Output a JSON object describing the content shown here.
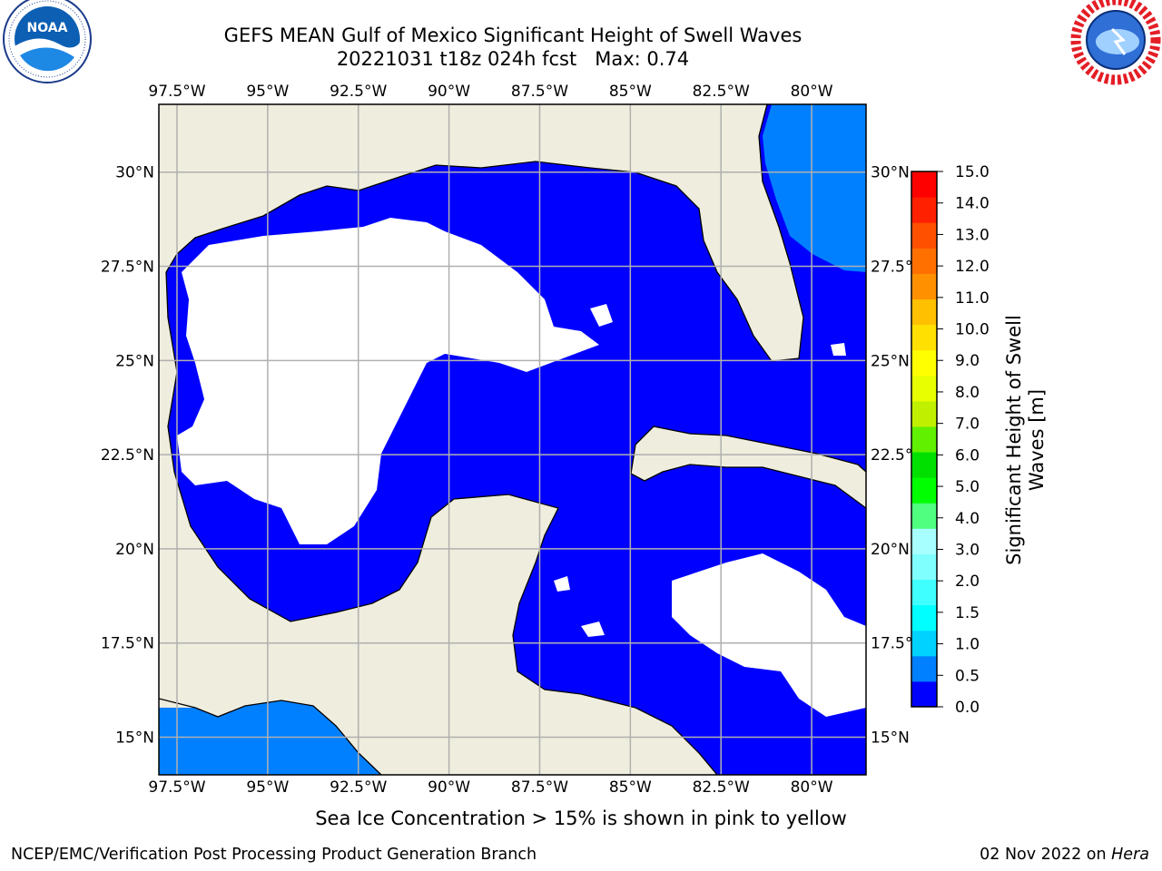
{
  "title": {
    "line1": "GEFS MEAN Gulf of Mexico Significant Height of Swell Waves",
    "line2": "20221031 t18z 024h fcst   Max: 0.74"
  },
  "logos": {
    "left": {
      "icon": "noaa-logo",
      "text": "NOAA",
      "ring_text": "NATIONAL OCEANIC AND ATMOSPHERIC ADMINISTRATION · U.S. DEPARTMENT OF COMMERCE"
    },
    "right": {
      "icon": "national-weather-service-logo",
      "ring_text": "NATIONAL WEATHER SERVICE"
    }
  },
  "map": {
    "lon_range": [
      -98.0,
      -78.5
    ],
    "lat_range": [
      14.0,
      31.8
    ],
    "x_ticks": [
      "97.5°W",
      "95°W",
      "92.5°W",
      "90°W",
      "87.5°W",
      "85°W",
      "82.5°W",
      "80°W"
    ],
    "y_ticks": [
      "30°N",
      "27.5°N",
      "25°N",
      "22.5°N",
      "20°N",
      "17.5°N",
      "15°N"
    ],
    "colors": {
      "land": "#efedde",
      "ocean_low": "#0000ff",
      "ocean_mid": "#0080ff",
      "masked": "#ffffff",
      "grid": "#b0b0b0",
      "coast": "#000000"
    }
  },
  "colorbar": {
    "label": "Significant Height of Swell Waves [m]",
    "ticks": [
      "0.0",
      "0.5",
      "1.0",
      "1.5",
      "2.0",
      "3.0",
      "4.0",
      "5.0",
      "6.0",
      "7.0",
      "8.0",
      "9.0",
      "10.0",
      "11.0",
      "12.0",
      "13.0",
      "14.0",
      "15.0"
    ],
    "colors": [
      "#0000ff",
      "#0080ff",
      "#00d2ff",
      "#00ffff",
      "#40ffff",
      "#80ffff",
      "#a8ffff",
      "#50ff80",
      "#00ff00",
      "#00e000",
      "#60f000",
      "#c0f000",
      "#e8ff00",
      "#ffff00",
      "#ffe000",
      "#ffc000",
      "#ff9000",
      "#ff7000",
      "#ff5000",
      "#ff2000",
      "#ff0000"
    ]
  },
  "footer": {
    "note": "Sea Ice Concentration > 15% is shown in pink to yellow",
    "left": "NCEP/EMC/Verification Post Processing Product Generation Branch",
    "right_date": "02 Nov 2022 on ",
    "right_host": "Hera"
  }
}
